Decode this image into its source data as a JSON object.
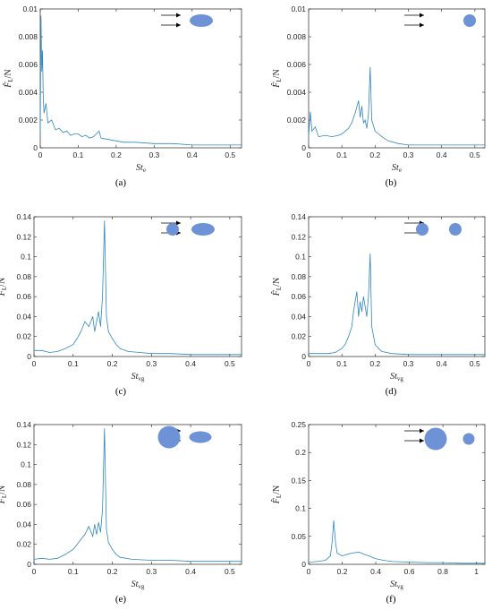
{
  "colors": {
    "line": "#2f87bd",
    "shape": "#6d93d6",
    "axis": "#262626"
  },
  "chart_data": [
    {
      "type": "line",
      "caption": "(a)",
      "ylabel_main": "F̂",
      "ylabel_sub": "L",
      "ylabel_unit": "/N",
      "xlabel_main": "St",
      "xlabel_sub": "e",
      "xlim": [
        0,
        0.53
      ],
      "ylim": [
        0,
        0.01
      ],
      "xticks": [
        0,
        0.1,
        0.2,
        0.3,
        0.4,
        0.5
      ],
      "xtick_labels": [
        "0",
        "0.1",
        "0.2",
        "0.3",
        "0.4",
        "0.5"
      ],
      "yticks": [
        0,
        0.002,
        0.004,
        0.006,
        0.008,
        0.01
      ],
      "ytick_labels": [
        "0",
        "0.002",
        "0.004",
        "0.006",
        "0.008",
        "0.01"
      ],
      "legend_icon": "arrows-ellipse",
      "series": [
        {
          "points": [
            [
              0,
              0.001
            ],
            [
              0.002,
              0.0095
            ],
            [
              0.004,
              0.0055
            ],
            [
              0.006,
              0.007
            ],
            [
              0.008,
              0.0035
            ],
            [
              0.01,
              0.0025
            ],
            [
              0.015,
              0.0032
            ],
            [
              0.02,
              0.0018
            ],
            [
              0.03,
              0.002
            ],
            [
              0.04,
              0.0013
            ],
            [
              0.05,
              0.0014
            ],
            [
              0.06,
              0.0011
            ],
            [
              0.07,
              0.0012
            ],
            [
              0.08,
              0.0009
            ],
            [
              0.09,
              0.001
            ],
            [
              0.1,
              0.001
            ],
            [
              0.11,
              0.0008
            ],
            [
              0.12,
              0.0009
            ],
            [
              0.13,
              0.0007
            ],
            [
              0.14,
              0.0008
            ],
            [
              0.155,
              0.0012
            ],
            [
              0.16,
              0.0007
            ],
            [
              0.18,
              0.0006
            ],
            [
              0.2,
              0.0005
            ],
            [
              0.22,
              0.0004
            ],
            [
              0.25,
              0.0004
            ],
            [
              0.3,
              0.0003
            ],
            [
              0.35,
              0.0003
            ],
            [
              0.4,
              0.0002
            ],
            [
              0.45,
              0.0002
            ],
            [
              0.5,
              0.0002
            ],
            [
              0.53,
              0.0002
            ]
          ]
        }
      ]
    },
    {
      "type": "line",
      "caption": "(b)",
      "ylabel_main": "F̂",
      "ylabel_sub": "L",
      "ylabel_unit": "/N",
      "xlabel_main": "St",
      "xlabel_sub": "e",
      "xlim": [
        0,
        0.53
      ],
      "ylim": [
        0,
        0.01
      ],
      "xticks": [
        0,
        0.1,
        0.2,
        0.3,
        0.4,
        0.5
      ],
      "xtick_labels": [
        "0",
        "0.1",
        "0.2",
        "0.3",
        "0.4",
        "0.5"
      ],
      "yticks": [
        0,
        0.002,
        0.004,
        0.006,
        0.008,
        0.01
      ],
      "ytick_labels": [
        "0",
        "0.002",
        "0.004",
        "0.006",
        "0.008",
        "0.01"
      ],
      "legend_icon": "arrows-circle",
      "series": [
        {
          "points": [
            [
              0,
              0.0008
            ],
            [
              0.005,
              0.0026
            ],
            [
              0.01,
              0.0012
            ],
            [
              0.02,
              0.0015
            ],
            [
              0.03,
              0.0008
            ],
            [
              0.05,
              0.0009
            ],
            [
              0.07,
              0.0008
            ],
            [
              0.09,
              0.0009
            ],
            [
              0.1,
              0.001
            ],
            [
              0.11,
              0.0012
            ],
            [
              0.12,
              0.0014
            ],
            [
              0.13,
              0.0018
            ],
            [
              0.14,
              0.0025
            ],
            [
              0.15,
              0.0034
            ],
            [
              0.155,
              0.0022
            ],
            [
              0.16,
              0.003
            ],
            [
              0.165,
              0.0018
            ],
            [
              0.17,
              0.002
            ],
            [
              0.175,
              0.0014
            ],
            [
              0.18,
              0.0024
            ],
            [
              0.185,
              0.0058
            ],
            [
              0.19,
              0.002
            ],
            [
              0.2,
              0.0012
            ],
            [
              0.21,
              0.001
            ],
            [
              0.22,
              0.0008
            ],
            [
              0.24,
              0.0005
            ],
            [
              0.27,
              0.0003
            ],
            [
              0.3,
              0.0002
            ],
            [
              0.35,
              0.0002
            ],
            [
              0.4,
              0.0002
            ],
            [
              0.45,
              0.0002
            ],
            [
              0.5,
              0.0002
            ],
            [
              0.53,
              0.0002
            ]
          ]
        }
      ]
    },
    {
      "type": "line",
      "caption": "(c)",
      "ylabel_main": "F̂",
      "ylabel_sub": "L",
      "ylabel_unit": "/N",
      "xlabel_main": "St",
      "xlabel_sub": "vg",
      "xlim": [
        0,
        0.53
      ],
      "ylim": [
        0,
        0.14
      ],
      "xticks": [
        0,
        0.1,
        0.2,
        0.3,
        0.4,
        0.5
      ],
      "xtick_labels": [
        "0",
        "0.1",
        "0.2",
        "0.3",
        "0.4",
        "0.5"
      ],
      "yticks": [
        0,
        0.02,
        0.04,
        0.06,
        0.08,
        0.1,
        0.12,
        0.14
      ],
      "ytick_labels": [
        "0",
        "0.02",
        "0.04",
        "0.06",
        "0.08",
        "0.1",
        "0.12",
        "0.14"
      ],
      "legend_icon": "arrows-circle-ellipse",
      "series": [
        {
          "points": [
            [
              0,
              0.006
            ],
            [
              0.02,
              0.006
            ],
            [
              0.04,
              0.004
            ],
            [
              0.06,
              0.005
            ],
            [
              0.08,
              0.008
            ],
            [
              0.1,
              0.012
            ],
            [
              0.11,
              0.018
            ],
            [
              0.12,
              0.025
            ],
            [
              0.13,
              0.035
            ],
            [
              0.14,
              0.03
            ],
            [
              0.15,
              0.04
            ],
            [
              0.155,
              0.025
            ],
            [
              0.16,
              0.035
            ],
            [
              0.165,
              0.045
            ],
            [
              0.17,
              0.03
            ],
            [
              0.175,
              0.06
            ],
            [
              0.18,
              0.136
            ],
            [
              0.185,
              0.04
            ],
            [
              0.19,
              0.025
            ],
            [
              0.2,
              0.018
            ],
            [
              0.21,
              0.012
            ],
            [
              0.22,
              0.008
            ],
            [
              0.24,
              0.005
            ],
            [
              0.27,
              0.004
            ],
            [
              0.3,
              0.003
            ],
            [
              0.35,
              0.003
            ],
            [
              0.4,
              0.002
            ],
            [
              0.45,
              0.002
            ],
            [
              0.5,
              0.002
            ],
            [
              0.53,
              0.002
            ]
          ]
        }
      ]
    },
    {
      "type": "line",
      "caption": "(d)",
      "ylabel_main": "F̂",
      "ylabel_sub": "L",
      "ylabel_unit": "/N",
      "xlabel_main": "St",
      "xlabel_sub": "vg",
      "xlim": [
        0,
        0.53
      ],
      "ylim": [
        0,
        0.14
      ],
      "xticks": [
        0,
        0.1,
        0.2,
        0.3,
        0.4,
        0.5
      ],
      "xtick_labels": [
        "0",
        "0.1",
        "0.2",
        "0.3",
        "0.4",
        "0.5"
      ],
      "yticks": [
        0,
        0.02,
        0.04,
        0.06,
        0.08,
        0.1,
        0.12,
        0.14
      ],
      "ytick_labels": [
        "0",
        "0.02",
        "0.04",
        "0.06",
        "0.08",
        "0.1",
        "0.12",
        "0.14"
      ],
      "legend_icon": "arrows-circle-circle",
      "series": [
        {
          "points": [
            [
              0,
              0.003
            ],
            [
              0.03,
              0.003
            ],
            [
              0.06,
              0.003
            ],
            [
              0.08,
              0.004
            ],
            [
              0.1,
              0.008
            ],
            [
              0.11,
              0.012
            ],
            [
              0.12,
              0.02
            ],
            [
              0.13,
              0.03
            ],
            [
              0.135,
              0.045
            ],
            [
              0.14,
              0.055
            ],
            [
              0.145,
              0.065
            ],
            [
              0.15,
              0.04
            ],
            [
              0.155,
              0.055
            ],
            [
              0.16,
              0.045
            ],
            [
              0.165,
              0.06
            ],
            [
              0.17,
              0.05
            ],
            [
              0.175,
              0.04
            ],
            [
              0.18,
              0.06
            ],
            [
              0.185,
              0.103
            ],
            [
              0.19,
              0.03
            ],
            [
              0.2,
              0.012
            ],
            [
              0.21,
              0.008
            ],
            [
              0.22,
              0.005
            ],
            [
              0.25,
              0.003
            ],
            [
              0.3,
              0.002
            ],
            [
              0.35,
              0.002
            ],
            [
              0.4,
              0.002
            ],
            [
              0.45,
              0.002
            ],
            [
              0.5,
              0.002
            ],
            [
              0.53,
              0.002
            ]
          ]
        }
      ]
    },
    {
      "type": "line",
      "caption": "(e)",
      "ylabel_main": "F̂",
      "ylabel_sub": "L",
      "ylabel_unit": "/N",
      "xlabel_main": "St",
      "xlabel_sub": "vg",
      "xlim": [
        0,
        0.53
      ],
      "ylim": [
        0,
        0.14
      ],
      "xticks": [
        0,
        0.1,
        0.2,
        0.3,
        0.4,
        0.5
      ],
      "xtick_labels": [
        "0",
        "0.1",
        "0.2",
        "0.3",
        "0.4",
        "0.5"
      ],
      "yticks": [
        0,
        0.02,
        0.04,
        0.06,
        0.08,
        0.1,
        0.12,
        0.14
      ],
      "ytick_labels": [
        "0",
        "0.02",
        "0.04",
        "0.06",
        "0.08",
        "0.1",
        "0.12",
        "0.14"
      ],
      "legend_icon": "arrows-bigcircle-ellipse",
      "series": [
        {
          "points": [
            [
              0,
              0.005
            ],
            [
              0.02,
              0.006
            ],
            [
              0.04,
              0.005
            ],
            [
              0.06,
              0.006
            ],
            [
              0.08,
              0.01
            ],
            [
              0.1,
              0.015
            ],
            [
              0.11,
              0.02
            ],
            [
              0.12,
              0.025
            ],
            [
              0.13,
              0.03
            ],
            [
              0.14,
              0.038
            ],
            [
              0.15,
              0.028
            ],
            [
              0.155,
              0.04
            ],
            [
              0.16,
              0.03
            ],
            [
              0.165,
              0.042
            ],
            [
              0.17,
              0.032
            ],
            [
              0.175,
              0.055
            ],
            [
              0.18,
              0.136
            ],
            [
              0.185,
              0.035
            ],
            [
              0.19,
              0.022
            ],
            [
              0.2,
              0.015
            ],
            [
              0.21,
              0.01
            ],
            [
              0.22,
              0.007
            ],
            [
              0.25,
              0.005
            ],
            [
              0.3,
              0.004
            ],
            [
              0.35,
              0.004
            ],
            [
              0.4,
              0.003
            ],
            [
              0.45,
              0.003
            ],
            [
              0.5,
              0.003
            ],
            [
              0.53,
              0.003
            ]
          ]
        }
      ]
    },
    {
      "type": "line",
      "caption": "(f)",
      "ylabel_main": "F̂",
      "ylabel_sub": "L",
      "ylabel_unit": "/N",
      "xlabel_main": "St",
      "xlabel_sub": "vg",
      "xlim": [
        0,
        1.05
      ],
      "ylim": [
        0,
        0.25
      ],
      "xticks": [
        0,
        0.2,
        0.4,
        0.6,
        0.8,
        1
      ],
      "xtick_labels": [
        "0",
        "0.2",
        "0.4",
        "0.6",
        "0.8",
        "1"
      ],
      "yticks": [
        0,
        0.05,
        0.1,
        0.15,
        0.2,
        0.25
      ],
      "ytick_labels": [
        "0",
        "0.05",
        "0.1",
        "0.15",
        "0.2",
        "0.25"
      ],
      "legend_icon": "arrows-bigcircle-circle",
      "series": [
        {
          "points": [
            [
              0,
              0.004
            ],
            [
              0.05,
              0.005
            ],
            [
              0.1,
              0.007
            ],
            [
              0.13,
              0.015
            ],
            [
              0.14,
              0.04
            ],
            [
              0.15,
              0.078
            ],
            [
              0.16,
              0.04
            ],
            [
              0.17,
              0.02
            ],
            [
              0.2,
              0.015
            ],
            [
              0.23,
              0.018
            ],
            [
              0.26,
              0.02
            ],
            [
              0.3,
              0.022
            ],
            [
              0.33,
              0.018
            ],
            [
              0.36,
              0.015
            ],
            [
              0.4,
              0.01
            ],
            [
              0.45,
              0.007
            ],
            [
              0.5,
              0.005
            ],
            [
              0.6,
              0.004
            ],
            [
              0.7,
              0.003
            ],
            [
              0.8,
              0.003
            ],
            [
              0.9,
              0.002
            ],
            [
              1.0,
              0.002
            ],
            [
              1.05,
              0.002
            ]
          ]
        }
      ]
    }
  ]
}
